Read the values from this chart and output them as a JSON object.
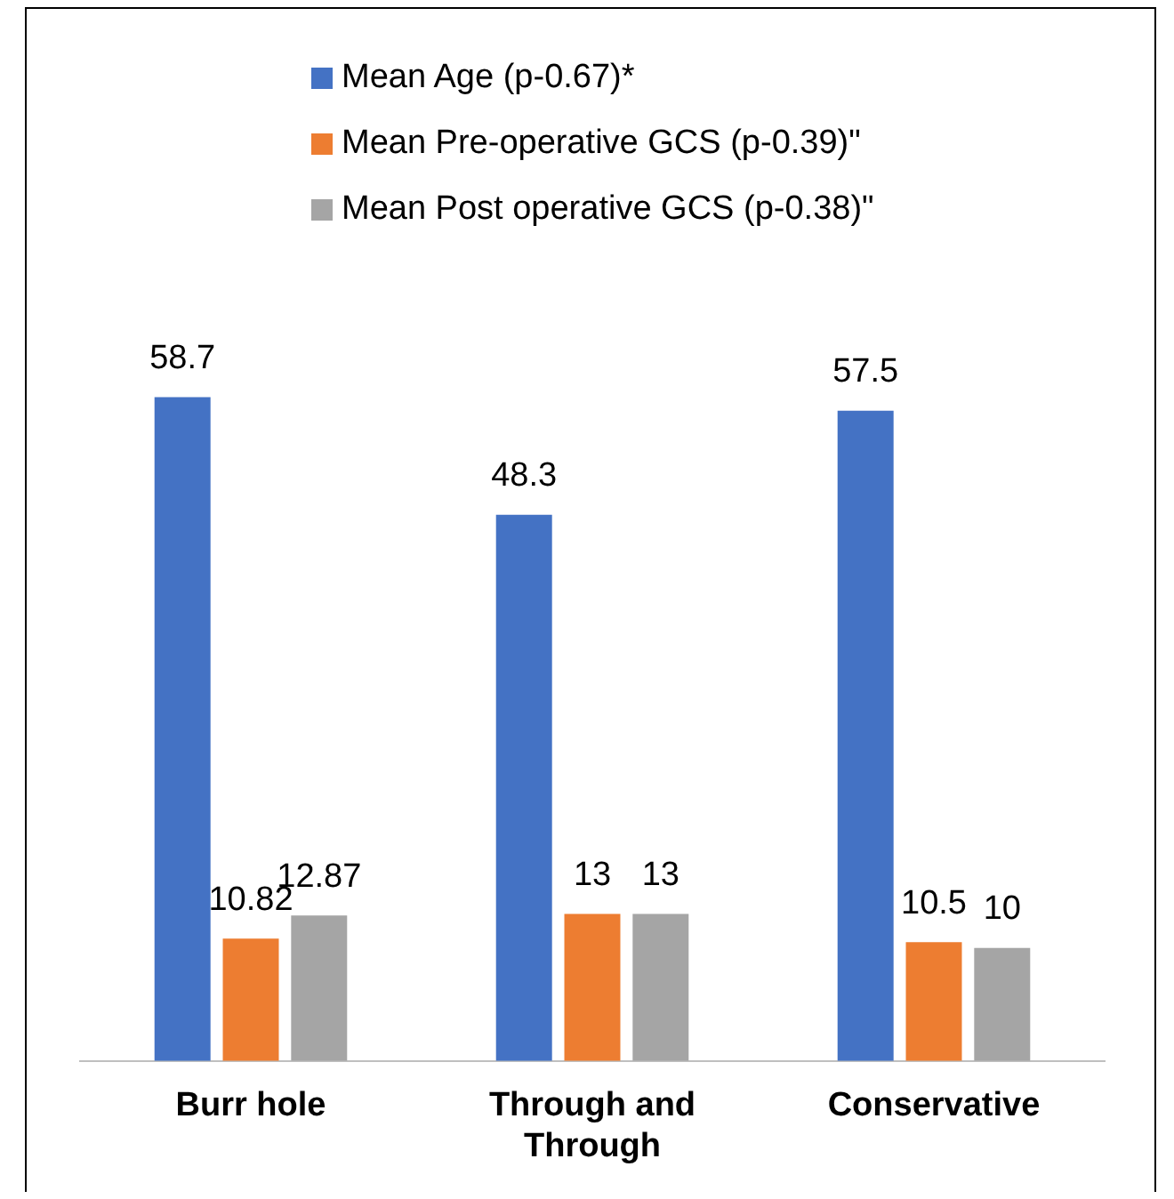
{
  "chart_data": {
    "type": "bar",
    "categories": [
      "Burr hole",
      "Through and Through",
      "Conservative"
    ],
    "series": [
      {
        "name": "Mean Age (p-0.67)*",
        "color": "#4472c4",
        "values": [
          58.7,
          48.3,
          57.5
        ]
      },
      {
        "name": "Mean Pre-operative GCS (p-0.39)\"",
        "color": "#ed7d31",
        "values": [
          10.82,
          13,
          10.5
        ]
      },
      {
        "name": "Mean Post operative GCS (p-0.38)\"",
        "color": "#a5a5a5",
        "values": [
          12.87,
          13,
          10
        ]
      }
    ],
    "data_labels": true,
    "grid": false,
    "legend": "top"
  }
}
